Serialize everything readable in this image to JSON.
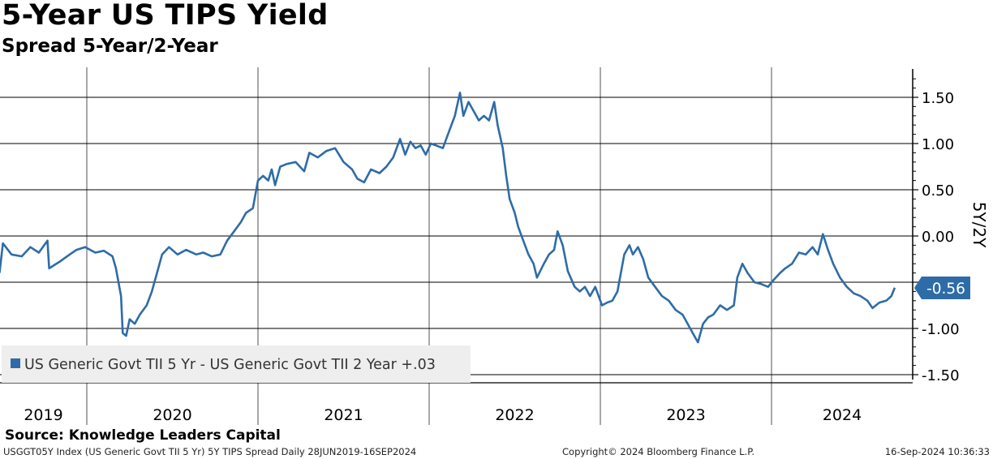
{
  "header": {
    "title": "5-Year US TIPS Yield",
    "subtitle": "Spread 5-Year/2-Year"
  },
  "footer": {
    "source": "Source: Knowledge Leaders Capital",
    "index_info": "USGGT05Y Index (US Generic Govt TII 5 Yr) 5Y TIPS Spread  Daily 28JUN2019-16SEP2024",
    "copyright": "Copyright© 2024 Bloomberg Finance L.P.",
    "timestamp": "16-Sep-2024 10:36:33"
  },
  "colors": {
    "series": "#2e6ca8",
    "grid": "#000000",
    "legend_bg": "#eeeeee"
  },
  "chart_data": {
    "type": "line",
    "title": "5-Year US TIPS Yield",
    "subtitle": "Spread 5-Year/2-Year",
    "ylabel": "5Y/2Y",
    "xlabel": "",
    "ylim": [
      -1.6,
      1.8
    ],
    "yticks": [
      1.5,
      1.0,
      0.5,
      0.0,
      -0.5,
      -1.0,
      -1.5
    ],
    "ytick_labels": [
      "1.50",
      "1.00",
      "0.50",
      "0.00",
      "-0.50",
      "-1.00",
      "-1.50"
    ],
    "xlim": [
      2019.49,
      2024.8
    ],
    "year_labels": [
      "2019",
      "2020",
      "2021",
      "2022",
      "2023",
      "2024"
    ],
    "grid": true,
    "legend": {
      "position": "bottom-left",
      "label": "US Generic Govt TII 5 Yr - US Generic Govt TII 2 Year +.03"
    },
    "last_value_label": "-0.56",
    "series": [
      {
        "name": "US Generic Govt TII 5 Yr - US Generic Govt TII 2 Year +.03",
        "last_value": -0.56,
        "points": [
          [
            2019.49,
            -0.4
          ],
          [
            2019.51,
            -0.08
          ],
          [
            2019.56,
            -0.2
          ],
          [
            2019.62,
            -0.22
          ],
          [
            2019.67,
            -0.12
          ],
          [
            2019.72,
            -0.18
          ],
          [
            2019.77,
            -0.05
          ],
          [
            2019.78,
            -0.35
          ],
          [
            2019.84,
            -0.28
          ],
          [
            2019.9,
            -0.2
          ],
          [
            2019.94,
            -0.15
          ],
          [
            2019.99,
            -0.12
          ],
          [
            2020.05,
            -0.18
          ],
          [
            2020.1,
            -0.16
          ],
          [
            2020.15,
            -0.22
          ],
          [
            2020.17,
            -0.35
          ],
          [
            2020.2,
            -0.65
          ],
          [
            2020.21,
            -1.05
          ],
          [
            2020.23,
            -1.08
          ],
          [
            2020.25,
            -0.9
          ],
          [
            2020.28,
            -0.95
          ],
          [
            2020.31,
            -0.85
          ],
          [
            2020.35,
            -0.75
          ],
          [
            2020.38,
            -0.6
          ],
          [
            2020.41,
            -0.4
          ],
          [
            2020.44,
            -0.2
          ],
          [
            2020.48,
            -0.12
          ],
          [
            2020.53,
            -0.2
          ],
          [
            2020.58,
            -0.15
          ],
          [
            2020.64,
            -0.2
          ],
          [
            2020.68,
            -0.18
          ],
          [
            2020.73,
            -0.22
          ],
          [
            2020.78,
            -0.2
          ],
          [
            2020.82,
            -0.05
          ],
          [
            2020.86,
            0.05
          ],
          [
            2020.9,
            0.15
          ],
          [
            2020.93,
            0.25
          ],
          [
            2020.97,
            0.3
          ],
          [
            2021.0,
            0.6
          ],
          [
            2021.03,
            0.65
          ],
          [
            2021.06,
            0.6
          ],
          [
            2021.08,
            0.72
          ],
          [
            2021.1,
            0.55
          ],
          [
            2021.13,
            0.75
          ],
          [
            2021.17,
            0.78
          ],
          [
            2021.22,
            0.8
          ],
          [
            2021.27,
            0.7
          ],
          [
            2021.3,
            0.9
          ],
          [
            2021.35,
            0.85
          ],
          [
            2021.4,
            0.92
          ],
          [
            2021.45,
            0.95
          ],
          [
            2021.5,
            0.8
          ],
          [
            2021.55,
            0.72
          ],
          [
            2021.58,
            0.62
          ],
          [
            2021.62,
            0.58
          ],
          [
            2021.66,
            0.72
          ],
          [
            2021.71,
            0.68
          ],
          [
            2021.75,
            0.75
          ],
          [
            2021.79,
            0.85
          ],
          [
            2021.83,
            1.05
          ],
          [
            2021.86,
            0.88
          ],
          [
            2021.89,
            1.02
          ],
          [
            2021.92,
            0.95
          ],
          [
            2021.95,
            0.98
          ],
          [
            2021.98,
            0.88
          ],
          [
            2022.01,
            1.0
          ],
          [
            2022.04,
            0.98
          ],
          [
            2022.08,
            0.95
          ],
          [
            2022.1,
            1.05
          ],
          [
            2022.13,
            1.2
          ],
          [
            2022.15,
            1.3
          ],
          [
            2022.18,
            1.55
          ],
          [
            2022.2,
            1.3
          ],
          [
            2022.23,
            1.45
          ],
          [
            2022.26,
            1.35
          ],
          [
            2022.29,
            1.25
          ],
          [
            2022.32,
            1.3
          ],
          [
            2022.35,
            1.25
          ],
          [
            2022.38,
            1.45
          ],
          [
            2022.4,
            1.2
          ],
          [
            2022.43,
            0.95
          ],
          [
            2022.45,
            0.65
          ],
          [
            2022.47,
            0.4
          ],
          [
            2022.5,
            0.25
          ],
          [
            2022.52,
            0.1
          ],
          [
            2022.55,
            -0.05
          ],
          [
            2022.58,
            -0.2
          ],
          [
            2022.61,
            -0.3
          ],
          [
            2022.63,
            -0.45
          ],
          [
            2022.67,
            -0.3
          ],
          [
            2022.7,
            -0.2
          ],
          [
            2022.73,
            -0.15
          ],
          [
            2022.75,
            0.05
          ],
          [
            2022.78,
            -0.1
          ],
          [
            2022.81,
            -0.38
          ],
          [
            2022.85,
            -0.55
          ],
          [
            2022.88,
            -0.6
          ],
          [
            2022.91,
            -0.55
          ],
          [
            2022.94,
            -0.65
          ],
          [
            2022.97,
            -0.55
          ],
          [
            2023.01,
            -0.75
          ],
          [
            2023.04,
            -0.72
          ],
          [
            2023.07,
            -0.7
          ],
          [
            2023.1,
            -0.6
          ],
          [
            2023.12,
            -0.4
          ],
          [
            2023.14,
            -0.2
          ],
          [
            2023.17,
            -0.1
          ],
          [
            2023.19,
            -0.2
          ],
          [
            2023.22,
            -0.12
          ],
          [
            2023.25,
            -0.25
          ],
          [
            2023.28,
            -0.45
          ],
          [
            2023.32,
            -0.55
          ],
          [
            2023.36,
            -0.65
          ],
          [
            2023.4,
            -0.7
          ],
          [
            2023.44,
            -0.8
          ],
          [
            2023.48,
            -0.85
          ],
          [
            2023.51,
            -0.95
          ],
          [
            2023.54,
            -1.05
          ],
          [
            2023.57,
            -1.15
          ],
          [
            2023.6,
            -0.95
          ],
          [
            2023.63,
            -0.88
          ],
          [
            2023.66,
            -0.85
          ],
          [
            2023.7,
            -0.75
          ],
          [
            2023.74,
            -0.8
          ],
          [
            2023.78,
            -0.75
          ],
          [
            2023.8,
            -0.45
          ],
          [
            2023.83,
            -0.3
          ],
          [
            2023.86,
            -0.4
          ],
          [
            2023.9,
            -0.5
          ],
          [
            2023.94,
            -0.52
          ],
          [
            2023.98,
            -0.55
          ],
          [
            2024.01,
            -0.48
          ],
          [
            2024.05,
            -0.4
          ],
          [
            2024.08,
            -0.35
          ],
          [
            2024.12,
            -0.3
          ],
          [
            2024.16,
            -0.18
          ],
          [
            2024.2,
            -0.2
          ],
          [
            2024.24,
            -0.12
          ],
          [
            2024.27,
            -0.2
          ],
          [
            2024.3,
            0.02
          ],
          [
            2024.33,
            -0.15
          ],
          [
            2024.36,
            -0.3
          ],
          [
            2024.4,
            -0.45
          ],
          [
            2024.44,
            -0.55
          ],
          [
            2024.48,
            -0.62
          ],
          [
            2024.52,
            -0.65
          ],
          [
            2024.56,
            -0.7
          ],
          [
            2024.59,
            -0.78
          ],
          [
            2024.63,
            -0.72
          ],
          [
            2024.67,
            -0.7
          ],
          [
            2024.7,
            -0.65
          ],
          [
            2024.72,
            -0.56
          ]
        ]
      }
    ]
  }
}
